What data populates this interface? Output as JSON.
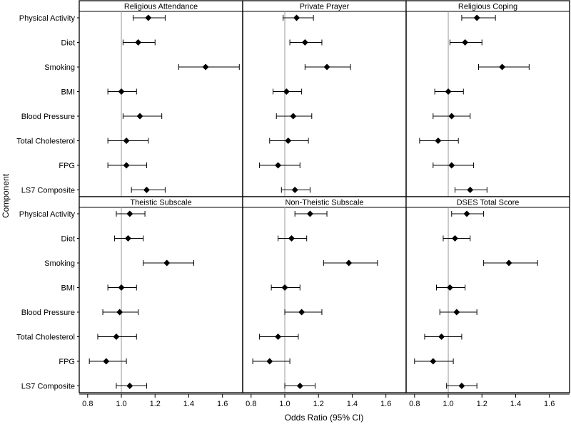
{
  "chart_data": {
    "type": "forest",
    "xlabel": "Odds Ratio (95% CI)",
    "ylabel": "Component",
    "xlim": [
      0.75,
      1.72
    ],
    "xticks": [
      0.8,
      1.0,
      1.2,
      1.4,
      1.6
    ],
    "xtick_labels": [
      "0.8",
      "1.0",
      "1.2",
      "1.4",
      "1.6"
    ],
    "reference_line": 1.0,
    "categories": [
      "Physical Activity",
      "Diet",
      "Smoking",
      "BMI",
      "Blood Pressure",
      "Total Cholesterol",
      "FPG",
      "LS7 Composite"
    ],
    "panels": [
      {
        "title": "Religious Attendance",
        "or": [
          1.16,
          1.1,
          1.5,
          1.0,
          1.11,
          1.03,
          1.03,
          1.15
        ],
        "lo": [
          1.07,
          1.01,
          1.34,
          0.92,
          1.01,
          0.92,
          0.92,
          1.06
        ],
        "hi": [
          1.26,
          1.2,
          1.7,
          1.09,
          1.24,
          1.16,
          1.15,
          1.26
        ]
      },
      {
        "title": "Private Prayer",
        "or": [
          1.07,
          1.12,
          1.25,
          1.01,
          1.05,
          1.02,
          0.96,
          1.06
        ],
        "lo": [
          0.99,
          1.03,
          1.12,
          0.93,
          0.95,
          0.91,
          0.85,
          0.98
        ],
        "hi": [
          1.17,
          1.22,
          1.39,
          1.1,
          1.16,
          1.14,
          1.09,
          1.15
        ]
      },
      {
        "title": "Religious Coping",
        "or": [
          1.17,
          1.1,
          1.32,
          1.0,
          1.02,
          0.94,
          1.02,
          1.13
        ],
        "lo": [
          1.08,
          1.01,
          1.18,
          0.92,
          0.91,
          0.83,
          0.91,
          1.04
        ],
        "hi": [
          1.28,
          1.2,
          1.48,
          1.09,
          1.13,
          1.06,
          1.15,
          1.23
        ]
      },
      {
        "title": "Theistic Subscale",
        "or": [
          1.05,
          1.04,
          1.27,
          1.0,
          0.99,
          0.97,
          0.91,
          1.05
        ],
        "lo": [
          0.97,
          0.96,
          1.13,
          0.92,
          0.89,
          0.86,
          0.81,
          0.97
        ],
        "hi": [
          1.14,
          1.13,
          1.43,
          1.09,
          1.1,
          1.09,
          1.03,
          1.15
        ]
      },
      {
        "title": "Non-Theistic Subscale",
        "or": [
          1.15,
          1.04,
          1.38,
          1.0,
          1.1,
          0.96,
          0.91,
          1.09
        ],
        "lo": [
          1.06,
          0.96,
          1.23,
          0.92,
          1.0,
          0.85,
          0.81,
          1.0
        ],
        "hi": [
          1.25,
          1.13,
          1.55,
          1.09,
          1.22,
          1.08,
          1.03,
          1.18
        ]
      },
      {
        "title": "DSES Total Score",
        "or": [
          1.11,
          1.04,
          1.36,
          1.01,
          1.05,
          0.96,
          0.91,
          1.08
        ],
        "lo": [
          1.02,
          0.97,
          1.21,
          0.93,
          0.95,
          0.86,
          0.8,
          0.99
        ],
        "hi": [
          1.21,
          1.13,
          1.53,
          1.1,
          1.17,
          1.08,
          1.03,
          1.17
        ]
      }
    ]
  }
}
